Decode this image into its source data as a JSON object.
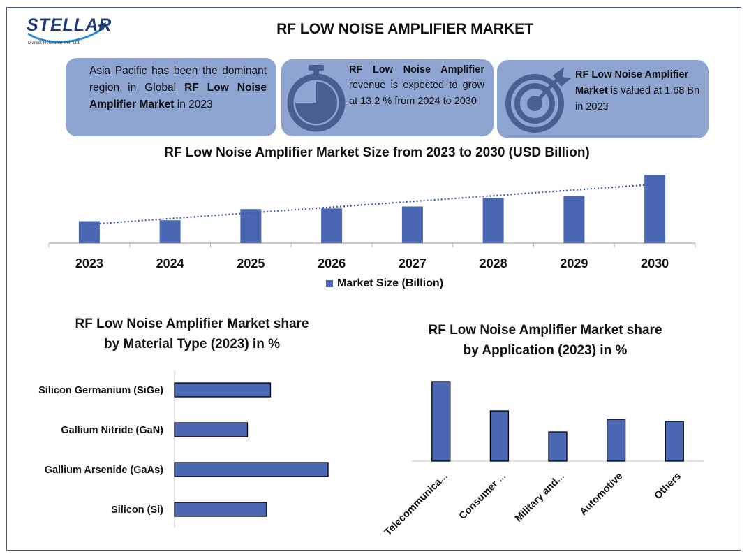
{
  "logo": {
    "text": "STELLAR",
    "sub": "Market Research Pvt. Ltd."
  },
  "title": "RF LOW NOISE AMPLIFIER MARKET",
  "cards": [
    {
      "pre": "Asia Pacific has been the dominant region in Global ",
      "bold": "RF Low Noise Amplifier Market",
      "post": " in 2023",
      "icon": "none"
    },
    {
      "bold": "RF Low Noise Amplifier",
      "post": " revenue is expected to grow at 13.2 % from 2024 to 2030",
      "icon": "stopwatch-icon"
    },
    {
      "bold": "RF Low Noise Amplifier Market",
      "post": " is valued at 1.68 Bn in 2023",
      "icon": "target-arrow-icon"
    }
  ],
  "colors": {
    "bar": "#4a67b4",
    "card": "#8ea5d2",
    "trend": "#3c5aa6"
  },
  "chart_data": [
    {
      "type": "bar",
      "title": "RF Low Noise Amplifier Market Size from 2023 to 2030 (USD Billion)",
      "categories": [
        "2023",
        "2024",
        "2025",
        "2026",
        "2027",
        "2028",
        "2029",
        "2030"
      ],
      "series": [
        {
          "name": "Market Size (Billion)",
          "values": [
            1.68,
            1.75,
            2.6,
            2.65,
            2.8,
            3.45,
            3.6,
            5.2
          ]
        }
      ],
      "trendline": "linear dotted",
      "legend": "bottom"
    },
    {
      "type": "bar",
      "orientation": "horizontal",
      "title_lines": [
        "RF Low Noise Amplifier Market share",
        "by Material Type (2023) in %"
      ],
      "categories": [
        "Silicon Germanium (SiGe)",
        "Gallium Nitride (GaN)",
        "Gallium Arsenide (GaAs)",
        "Silicon (Si)"
      ],
      "values": [
        25,
        19,
        40,
        24
      ]
    },
    {
      "type": "bar",
      "title_lines": [
        "RF Low Noise Amplifier Market share",
        "by Application (2023) in %"
      ],
      "categories": [
        "Telecommunica...",
        "Consumer ...",
        "Military and...",
        "Automotive",
        "Others"
      ],
      "values": [
        38,
        24,
        14,
        20,
        19
      ]
    }
  ]
}
